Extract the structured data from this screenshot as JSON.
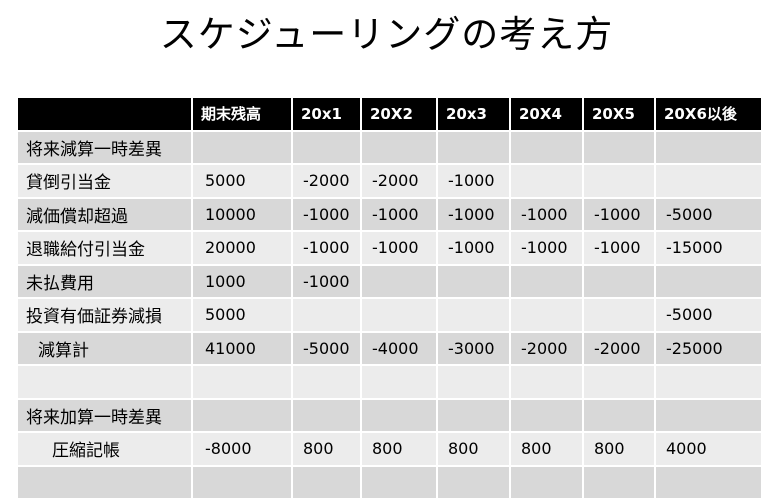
{
  "title": "スケジューリングの考え方",
  "table": {
    "headers": [
      "",
      "期末残高",
      "20x1",
      "20X2",
      "20x3",
      "20X4",
      "20X5",
      "20X6以後"
    ],
    "rows": [
      {
        "label": "将来減算一時差異",
        "indent": 0,
        "cells": [
          "",
          "",
          "",
          "",
          "",
          "",
          ""
        ]
      },
      {
        "label": "貸倒引当金",
        "indent": 0,
        "cells": [
          "5000",
          "-2000",
          "-2000",
          "-1000",
          "",
          "",
          ""
        ]
      },
      {
        "label": "減価償却超過",
        "indent": 0,
        "cells": [
          "10000",
          "-1000",
          "-1000",
          "-1000",
          "-1000",
          "-1000",
          "-5000"
        ]
      },
      {
        "label": "退職給付引当金",
        "indent": 0,
        "cells": [
          "20000",
          "-1000",
          "-1000",
          "-1000",
          "-1000",
          "-1000",
          "-15000"
        ]
      },
      {
        "label": "未払費用",
        "indent": 0,
        "cells": [
          "1000",
          "-1000",
          "",
          "",
          "",
          "",
          ""
        ]
      },
      {
        "label": "投資有価証券減損",
        "indent": 0,
        "cells": [
          "5000",
          "",
          "",
          "",
          "",
          "",
          "-5000"
        ]
      },
      {
        "label": "減算計",
        "indent": 1,
        "cells": [
          "41000",
          "-5000",
          "-4000",
          "-3000",
          "-2000",
          "-2000",
          "-25000"
        ]
      },
      {
        "label": "",
        "indent": 0,
        "cells": [
          "",
          "",
          "",
          "",
          "",
          "",
          ""
        ]
      },
      {
        "label": "将来加算一時差異",
        "indent": 0,
        "cells": [
          "",
          "",
          "",
          "",
          "",
          "",
          ""
        ]
      },
      {
        "label": "圧縮記帳",
        "indent": 2,
        "cells": [
          "-8000",
          "800",
          "800",
          "800",
          "800",
          "800",
          "4000"
        ]
      },
      {
        "label": "",
        "indent": 0,
        "cells": [
          "",
          "",
          "",
          "",
          "",
          "",
          ""
        ]
      }
    ]
  }
}
